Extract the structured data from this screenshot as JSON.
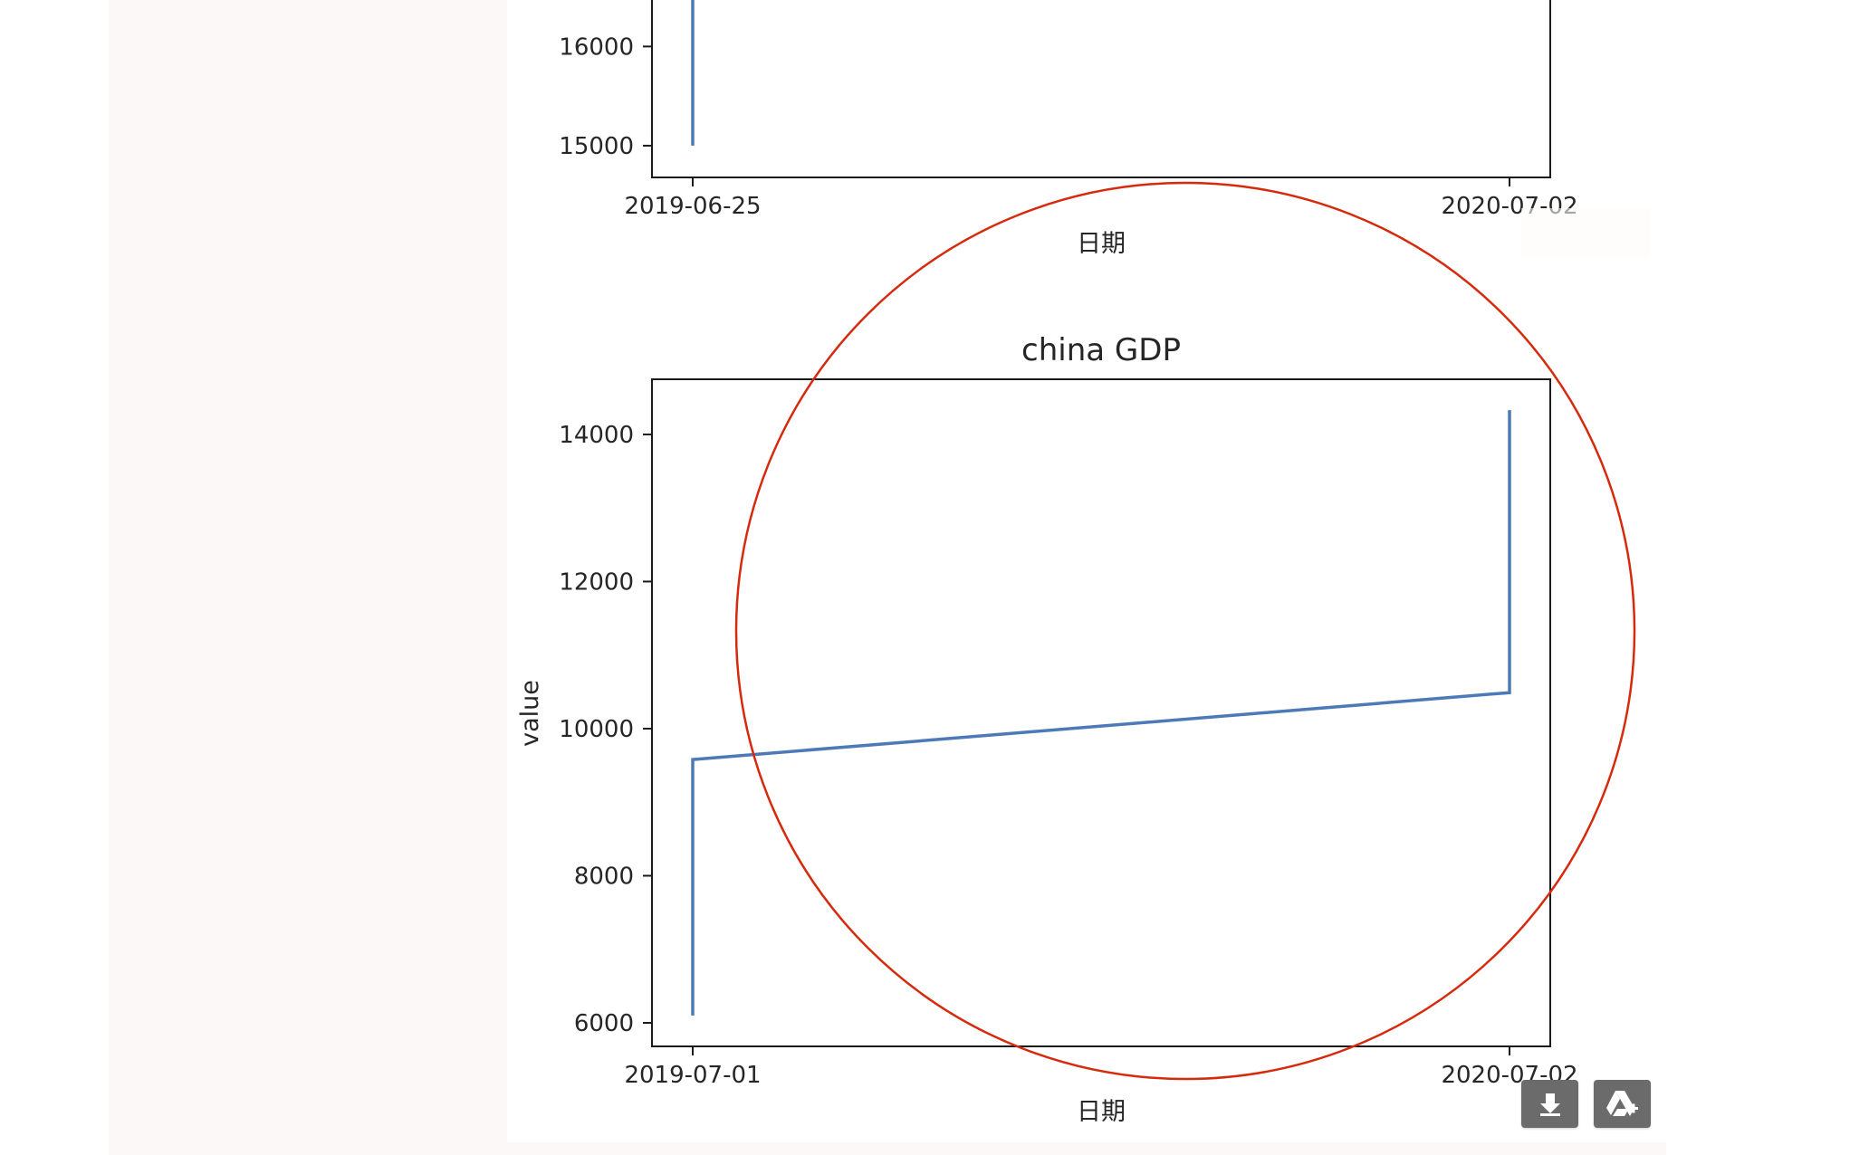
{
  "colors": {
    "line": "#4c7ab9",
    "annotation_circle": "#d62a0c",
    "page_background": "#fbf8f7",
    "button_background": "#6b6b6b"
  },
  "chart_data": [
    {
      "type": "line",
      "title": "",
      "xlabel": "日期",
      "ylabel": "",
      "xtick_labels": [
        "2019-06-25",
        "2020-07-02"
      ],
      "yticks": [
        15000,
        16000
      ],
      "ytick_labels": [
        "15000",
        "16000"
      ],
      "ylim": [
        14680,
        16560
      ],
      "series": [
        {
          "points": [
            {
              "x": "2019-06-25",
              "y": 15000
            },
            {
              "x": "2019-06-25",
              "y": 16600
            }
          ]
        }
      ],
      "grid": false,
      "partially_visible": "top cropped"
    },
    {
      "type": "line",
      "title": "china GDP",
      "xlabel": "日期",
      "ylabel": "value",
      "xtick_labels": [
        "2019-07-01",
        "2020-07-02"
      ],
      "yticks": [
        6000,
        8000,
        10000,
        12000,
        14000
      ],
      "ytick_labels": [
        "6000",
        "8000",
        "10000",
        "12000",
        "14000"
      ],
      "ylim": [
        5680,
        14750
      ],
      "series": [
        {
          "points": [
            {
              "x": "2019-07-01",
              "y": 6100
            },
            {
              "x": "2019-07-01",
              "y": 9580
            },
            {
              "x": "2020-07-02",
              "y": 10490
            },
            {
              "x": "2020-07-02",
              "y": 14330
            }
          ]
        }
      ],
      "grid": false
    }
  ],
  "toolbar": {
    "download_icon": "download-icon",
    "drive_icon": "google-drive-add-icon"
  }
}
